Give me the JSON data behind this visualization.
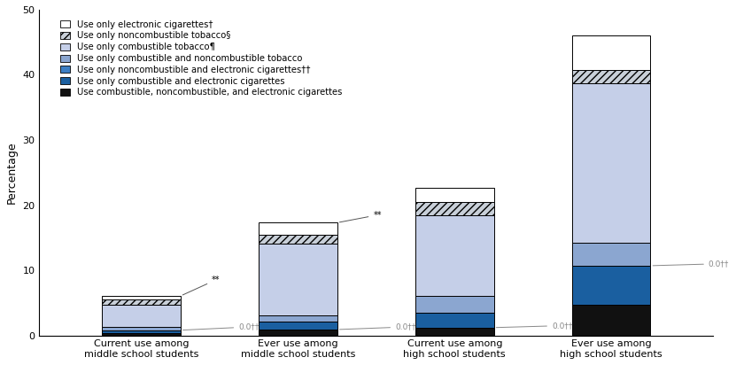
{
  "categories": [
    "Current use among\nmiddle school students",
    "Ever use among\nmiddle school students",
    "Current use among\nhigh school students",
    "Ever use among\nhigh school students"
  ],
  "segment_labels": [
    "Use only electronic cigarettes†",
    "Use only noncombustible tobacco§",
    "Use only combustible tobacco¶",
    "Use only combustible and noncombustible tobacco",
    "Use only noncombustible and electronic cigarettes††",
    "Use only combustible and electronic cigarettes",
    "Use combustible, noncombustible, and electronic cigarettes"
  ],
  "segment_colors": [
    "#ffffff",
    "#c8cfd8",
    "#c5cfe8",
    "#8ba6d0",
    "#3d7fc4",
    "#1a5fa0",
    "#111111"
  ],
  "segment_hatch": [
    null,
    "////",
    null,
    null,
    null,
    null,
    null
  ],
  "segment_values": [
    [
      0.55,
      1.8,
      2.2,
      5.3
    ],
    [
      0.75,
      1.4,
      2.0,
      2.0
    ],
    [
      3.5,
      11.0,
      12.5,
      24.5
    ],
    [
      0.5,
      1.0,
      2.5,
      3.5
    ],
    [
      0.0,
      0.0,
      0.0,
      0.0
    ],
    [
      0.45,
      1.2,
      2.3,
      6.0
    ],
    [
      0.3,
      0.9,
      1.2,
      4.7
    ]
  ],
  "ylim": [
    0,
    50
  ],
  "yticks": [
    0,
    10,
    20,
    30,
    40,
    50
  ],
  "ylabel": "Percentage",
  "bar_width": 0.5,
  "tick_fontsize": 8.0,
  "legend_fontsize": 7.2,
  "ylabel_fontsize": 9.0,
  "annotation_gray": "#888888"
}
